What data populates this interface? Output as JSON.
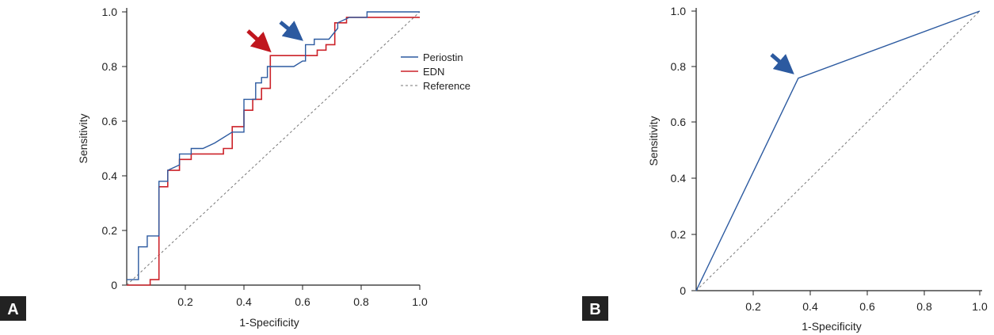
{
  "colors": {
    "periostin": "#2c5aa0",
    "edn": "#cc2229",
    "reference": "#777777",
    "axis": "#222222",
    "arrow_blue": "#2c5aa0",
    "arrow_red": "#c0161e"
  },
  "chart_data": [
    {
      "panel_label": "A",
      "type": "line",
      "xlabel": "1-Specificity",
      "ylabel": "Sensitivity",
      "xlim": [
        0,
        1
      ],
      "ylim": [
        0,
        1
      ],
      "x_ticks": [
        "0.2",
        "0.4",
        "0.6",
        "0.8",
        "1.0"
      ],
      "y_ticks": [
        "0",
        "0.2",
        "0.4",
        "0.6",
        "0.8",
        "1.0"
      ],
      "grid": false,
      "legend_position": "right",
      "series": [
        {
          "name": "Periostin",
          "points": [
            [
              0,
              0.02
            ],
            [
              0.04,
              0.02
            ],
            [
              0.04,
              0.14
            ],
            [
              0.07,
              0.14
            ],
            [
              0.07,
              0.18
            ],
            [
              0.11,
              0.18
            ],
            [
              0.11,
              0.38
            ],
            [
              0.14,
              0.38
            ],
            [
              0.14,
              0.42
            ],
            [
              0.18,
              0.44
            ],
            [
              0.18,
              0.48
            ],
            [
              0.22,
              0.48
            ],
            [
              0.22,
              0.5
            ],
            [
              0.26,
              0.5
            ],
            [
              0.3,
              0.52
            ],
            [
              0.36,
              0.56
            ],
            [
              0.4,
              0.56
            ],
            [
              0.4,
              0.68
            ],
            [
              0.44,
              0.68
            ],
            [
              0.44,
              0.74
            ],
            [
              0.46,
              0.74
            ],
            [
              0.46,
              0.76
            ],
            [
              0.48,
              0.76
            ],
            [
              0.48,
              0.8
            ],
            [
              0.57,
              0.8
            ],
            [
              0.6,
              0.82
            ],
            [
              0.61,
              0.82
            ],
            [
              0.61,
              0.88
            ],
            [
              0.64,
              0.88
            ],
            [
              0.64,
              0.9
            ],
            [
              0.69,
              0.9
            ],
            [
              0.72,
              0.94
            ],
            [
              0.72,
              0.96
            ],
            [
              0.76,
              0.98
            ],
            [
              0.82,
              0.98
            ],
            [
              0.82,
              1.0
            ],
            [
              1.0,
              1.0
            ]
          ]
        },
        {
          "name": "EDN",
          "points": [
            [
              0,
              0
            ],
            [
              0.08,
              0
            ],
            [
              0.08,
              0.02
            ],
            [
              0.11,
              0.02
            ],
            [
              0.11,
              0.36
            ],
            [
              0.14,
              0.36
            ],
            [
              0.14,
              0.42
            ],
            [
              0.18,
              0.42
            ],
            [
              0.18,
              0.46
            ],
            [
              0.22,
              0.46
            ],
            [
              0.22,
              0.48
            ],
            [
              0.33,
              0.48
            ],
            [
              0.33,
              0.5
            ],
            [
              0.36,
              0.5
            ],
            [
              0.36,
              0.58
            ],
            [
              0.4,
              0.58
            ],
            [
              0.4,
              0.64
            ],
            [
              0.43,
              0.64
            ],
            [
              0.43,
              0.68
            ],
            [
              0.46,
              0.68
            ],
            [
              0.46,
              0.72
            ],
            [
              0.49,
              0.72
            ],
            [
              0.49,
              0.84
            ],
            [
              0.65,
              0.84
            ],
            [
              0.65,
              0.86
            ],
            [
              0.68,
              0.86
            ],
            [
              0.68,
              0.88
            ],
            [
              0.71,
              0.88
            ],
            [
              0.71,
              0.96
            ],
            [
              0.75,
              0.96
            ],
            [
              0.75,
              0.98
            ],
            [
              1.0,
              0.98
            ]
          ]
        },
        {
          "name": "Reference",
          "points": [
            [
              0,
              0
            ],
            [
              1,
              1
            ]
          ]
        }
      ],
      "annotations": [
        {
          "type": "arrow",
          "color": "blue",
          "target": [
            0.6,
            0.86
          ]
        },
        {
          "type": "arrow",
          "color": "red",
          "target": [
            0.49,
            0.85
          ]
        }
      ]
    },
    {
      "panel_label": "B",
      "type": "line",
      "xlabel": "1-Specificity",
      "ylabel": "Sensitivity",
      "xlim": [
        0,
        1
      ],
      "ylim": [
        0,
        1
      ],
      "x_ticks": [
        "0.2",
        "0.4",
        "0.6",
        "0.8",
        "1.0"
      ],
      "y_ticks": [
        "0",
        "0.2",
        "0.4",
        "0.6",
        "0.8",
        "1.0"
      ],
      "grid": false,
      "series": [
        {
          "points": [
            [
              0,
              0
            ],
            [
              0.36,
              0.76
            ],
            [
              1,
              1
            ]
          ]
        },
        {
          "points": [
            [
              0,
              0
            ],
            [
              1,
              1
            ]
          ],
          "dashed": true
        }
      ],
      "annotations": [
        {
          "type": "arrow",
          "color": "blue",
          "target": [
            0.35,
            0.78
          ]
        }
      ]
    }
  ]
}
